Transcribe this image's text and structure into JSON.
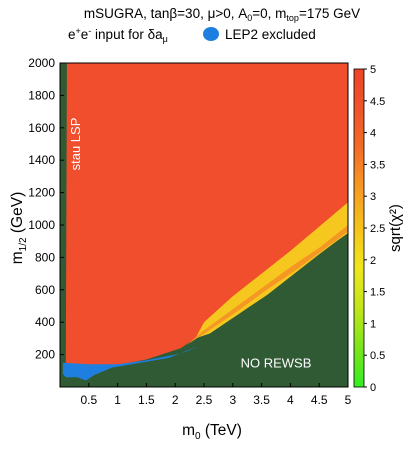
{
  "chart_data": {
    "type": "heatmap",
    "title_parts": {
      "a": "mSUGRA, tan",
      "b": "β",
      "c": "=30, ",
      "d": "μ",
      "e": ">0, A",
      "f": "0",
      "g": "=0, m",
      "h": "top",
      "i": "=175 GeV"
    },
    "subtitle_parts": {
      "a": "e",
      "b": "+",
      "c": "e",
      "d": "-",
      "e": " input for ",
      "f": "δa",
      "g": "μ"
    },
    "legend": {
      "label": "LEP2 excluded",
      "color": "#1f7fe0"
    },
    "xlabel": {
      "main": "m",
      "sub": "0",
      "unit": " (TeV)"
    },
    "ylabel": {
      "main": "m",
      "sub": "1/2",
      "unit": " (GeV)"
    },
    "xlim": [
      0,
      5
    ],
    "ylim": [
      0,
      2000
    ],
    "xticks": [
      "0.5",
      "1",
      "1.5",
      "2",
      "2.5",
      "3",
      "3.5",
      "4",
      "4.5",
      "5"
    ],
    "yticks": [
      "200",
      "400",
      "600",
      "800",
      "1000",
      "1200",
      "1400",
      "1600",
      "1800",
      "2000"
    ],
    "colorbar": {
      "label": "sqrt(χ²)",
      "range": [
        0,
        5
      ],
      "ticks": [
        "0",
        "0.5",
        "1",
        "1.5",
        "2",
        "2.5",
        "3",
        "3.5",
        "4",
        "4.5",
        "5"
      ],
      "stops": [
        "#33ee22",
        "#7de51a",
        "#c2e51a",
        "#f0e61c",
        "#f6c21d",
        "#f79a22",
        "#f36d26",
        "#f0532b",
        "#ee4427"
      ]
    },
    "regions": [
      {
        "name": "sqrt(χ²) ≈ 5",
        "color": "#f04e2c",
        "boundary": [
          [
            0.12,
            2000
          ],
          [
            5,
            2000
          ],
          [
            5,
            1020
          ],
          [
            4.6,
            900
          ],
          [
            4.0,
            730
          ],
          [
            3.5,
            600
          ],
          [
            3.0,
            470
          ],
          [
            2.5,
            340
          ],
          [
            2.1,
            240
          ],
          [
            1.5,
            170
          ],
          [
            0.9,
            130
          ],
          [
            0.5,
            120
          ],
          [
            0.1,
            120
          ]
        ]
      },
      {
        "name": "sqrt(χ²) ≈ 3",
        "color": "#f6c81f",
        "boundary": [
          [
            5,
            1140
          ],
          [
            4.6,
            1020
          ],
          [
            4.0,
            840
          ],
          [
            3.5,
            700
          ],
          [
            3.0,
            560
          ],
          [
            2.5,
            400
          ],
          [
            2.35,
            300
          ],
          [
            2.6,
            330
          ],
          [
            3.1,
            450
          ],
          [
            3.6,
            570
          ],
          [
            4.0,
            680
          ],
          [
            4.5,
            820
          ],
          [
            4.8,
            900
          ],
          [
            5,
            950
          ]
        ]
      },
      {
        "name": "sqrt(χ²) ≈ 4",
        "color": "#f59723",
        "boundary": [
          [
            5,
            1000
          ],
          [
            4.5,
            860
          ],
          [
            4.0,
            740
          ],
          [
            3.5,
            610
          ],
          [
            3.0,
            480
          ],
          [
            2.5,
            350
          ],
          [
            2.2,
            260
          ],
          [
            2.55,
            340
          ],
          [
            3.05,
            460
          ],
          [
            3.55,
            590
          ],
          [
            4.05,
            710
          ],
          [
            4.55,
            840
          ],
          [
            5,
            960
          ]
        ]
      },
      {
        "name": "LEP2 excluded",
        "color": "#1f7fe0",
        "boundary": [
          [
            0.05,
            80
          ],
          [
            0.05,
            150
          ],
          [
            0.5,
            140
          ],
          [
            1.0,
            140
          ],
          [
            1.5,
            165
          ],
          [
            2.0,
            200
          ],
          [
            2.2,
            220
          ],
          [
            2.4,
            250
          ],
          [
            2.2,
            225
          ],
          [
            1.9,
            180
          ],
          [
            1.4,
            150
          ],
          [
            0.9,
            120
          ],
          [
            0.6,
            75
          ],
          [
            0.45,
            40
          ],
          [
            0.3,
            60
          ],
          [
            0.1,
            60
          ]
        ]
      }
    ],
    "annotations": {
      "stau_lsp": "stau LSP",
      "no_rewsb": "NO REWSB"
    },
    "background_color": "#2f5a34"
  }
}
